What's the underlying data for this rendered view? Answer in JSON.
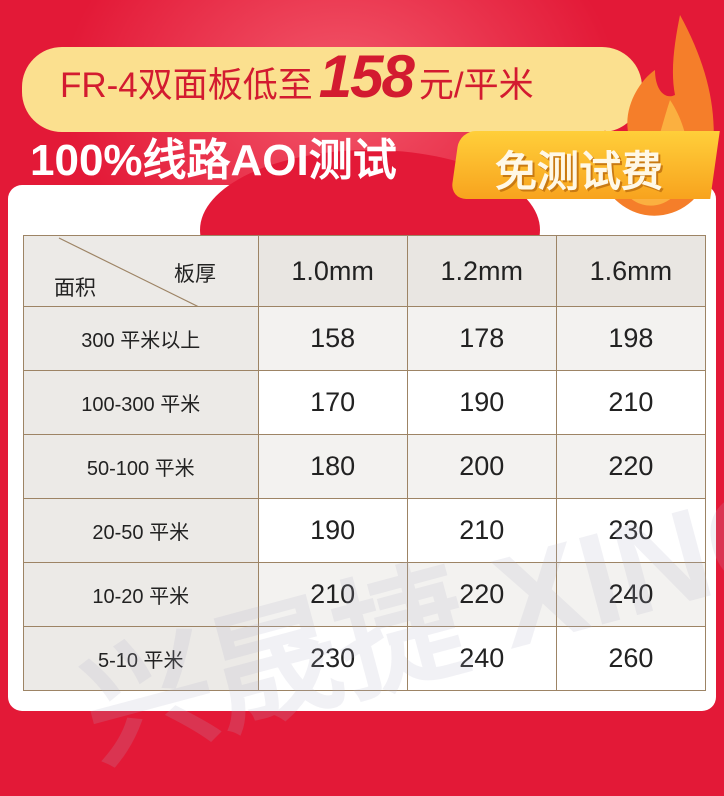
{
  "banner": {
    "promo_prefix": "FR-4双面板低至",
    "promo_price": "158",
    "promo_suffix": "元/平米",
    "subtitle": "100%线路AOI测试",
    "badge": "免测试费"
  },
  "colors": {
    "background": "#e31937",
    "pill": "#fbe08f",
    "badge": "#f8a31e",
    "border": "#9d8465"
  },
  "table": {
    "corner_row_label": "面积",
    "corner_col_label": "板厚",
    "columns": [
      "1.0mm",
      "1.2mm",
      "1.6mm"
    ],
    "rows": [
      {
        "label": "300 平米以上",
        "values": [
          "158",
          "178",
          "198"
        ]
      },
      {
        "label": "100-300 平米",
        "values": [
          "170",
          "190",
          "210"
        ]
      },
      {
        "label": "50-100 平米",
        "values": [
          "180",
          "200",
          "220"
        ]
      },
      {
        "label": "20-50 平米",
        "values": [
          "190",
          "210",
          "230"
        ]
      },
      {
        "label": "10-20 平米",
        "values": [
          "210",
          "220",
          "240"
        ]
      },
      {
        "label": "5-10 平米",
        "values": [
          "230",
          "240",
          "260"
        ]
      }
    ]
  },
  "watermark": "兴晟捷 XINGSHENGJIE"
}
